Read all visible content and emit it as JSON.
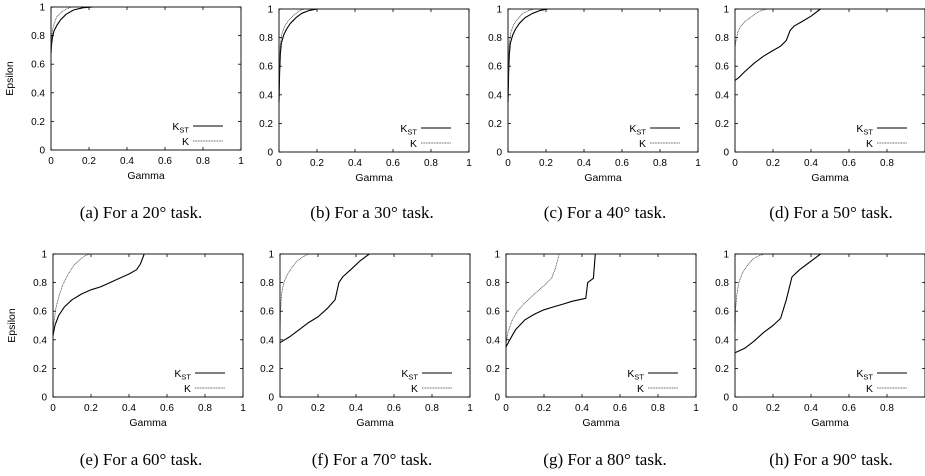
{
  "chart_data": [
    {
      "type": "line",
      "caption": "(a)  For a 20° task.",
      "xlabel": "Gamma",
      "ylabel": "Epsilon",
      "xlim": [
        0,
        1
      ],
      "ylim": [
        0,
        1
      ],
      "xticks": [
        "0",
        "0.2",
        "0.4",
        "0.6",
        "0.8",
        "1"
      ],
      "yticks": [
        "0",
        "0.2",
        "0.4",
        "0.6",
        "0.8",
        "1"
      ],
      "legend": "bottom-right",
      "grid": false,
      "series": [
        {
          "name": "K",
          "sub": "ST",
          "style": "solid",
          "points": [
            [
              0,
              0.68
            ],
            [
              0.003,
              0.74
            ],
            [
              0.008,
              0.79
            ],
            [
              0.015,
              0.83
            ],
            [
              0.03,
              0.87
            ],
            [
              0.05,
              0.91
            ],
            [
              0.08,
              0.95
            ],
            [
              0.12,
              0.98
            ],
            [
              0.17,
              0.995
            ],
            [
              0.22,
              1.0
            ]
          ]
        },
        {
          "name": "K",
          "style": "dotted",
          "points": [
            [
              0,
              0.7
            ],
            [
              0.003,
              0.78
            ],
            [
              0.008,
              0.84
            ],
            [
              0.015,
              0.88
            ],
            [
              0.03,
              0.93
            ],
            [
              0.05,
              0.96
            ],
            [
              0.08,
              0.985
            ],
            [
              0.11,
              1.0
            ]
          ]
        }
      ]
    },
    {
      "type": "line",
      "caption": "(b)  For a 30° task.",
      "xlabel": "Gamma",
      "ylabel": "",
      "xlim": [
        0,
        1
      ],
      "ylim": [
        0,
        1
      ],
      "xticks": [
        "0",
        "0.2",
        "0.4",
        "0.6",
        "0.8",
        "1"
      ],
      "yticks": [
        "0",
        "0.2",
        "0.4",
        "0.6",
        "0.8",
        "1"
      ],
      "legend": "bottom-right",
      "grid": false,
      "series": [
        {
          "name": "K",
          "sub": "ST",
          "style": "solid",
          "points": [
            [
              0,
              0.35
            ],
            [
              0.003,
              0.55
            ],
            [
              0.007,
              0.68
            ],
            [
              0.012,
              0.76
            ],
            [
              0.025,
              0.82
            ],
            [
              0.04,
              0.86
            ],
            [
              0.06,
              0.9
            ],
            [
              0.09,
              0.94
            ],
            [
              0.12,
              0.97
            ],
            [
              0.16,
              0.99
            ],
            [
              0.2,
              1.0
            ]
          ]
        },
        {
          "name": "K",
          "style": "dotted",
          "points": [
            [
              0,
              0.5
            ],
            [
              0.003,
              0.65
            ],
            [
              0.007,
              0.75
            ],
            [
              0.015,
              0.83
            ],
            [
              0.03,
              0.88
            ],
            [
              0.05,
              0.92
            ],
            [
              0.08,
              0.96
            ],
            [
              0.11,
              0.99
            ],
            [
              0.14,
              1.0
            ]
          ]
        }
      ]
    },
    {
      "type": "line",
      "caption": "(c)  For a 40° task.",
      "xlabel": "Gamma",
      "ylabel": "",
      "xlim": [
        0,
        1
      ],
      "ylim": [
        0,
        1
      ],
      "xticks": [
        "0",
        "0.2",
        "0.4",
        "0.6",
        "0.8",
        "1"
      ],
      "yticks": [
        "0",
        "0.2",
        "0.4",
        "0.6",
        "0.8",
        "1"
      ],
      "legend": "bottom-right",
      "grid": false,
      "series": [
        {
          "name": "K",
          "sub": "ST",
          "style": "solid",
          "points": [
            [
              0,
              0.35
            ],
            [
              0.003,
              0.55
            ],
            [
              0.007,
              0.68
            ],
            [
              0.012,
              0.76
            ],
            [
              0.025,
              0.82
            ],
            [
              0.04,
              0.86
            ],
            [
              0.06,
              0.9
            ],
            [
              0.09,
              0.94
            ],
            [
              0.13,
              0.97
            ],
            [
              0.17,
              0.99
            ],
            [
              0.21,
              1.0
            ]
          ]
        },
        {
          "name": "K",
          "style": "dotted",
          "points": [
            [
              0,
              0.5
            ],
            [
              0.003,
              0.65
            ],
            [
              0.007,
              0.76
            ],
            [
              0.015,
              0.84
            ],
            [
              0.03,
              0.89
            ],
            [
              0.05,
              0.93
            ],
            [
              0.08,
              0.97
            ],
            [
              0.11,
              0.99
            ],
            [
              0.14,
              1.0
            ]
          ]
        }
      ]
    },
    {
      "type": "line",
      "caption": "(d)  For a 50° task.",
      "xlabel": "Gamma",
      "ylabel": "",
      "xlim": [
        0,
        1
      ],
      "ylim": [
        0,
        1
      ],
      "xticks": [
        "0",
        "0.2",
        "0.4",
        "0.6",
        "0.8",
        ""
      ],
      "yticks": [
        "0",
        "0.2",
        "0.4",
        "0.6",
        "0.8",
        "1"
      ],
      "legend": "bottom-right",
      "grid": false,
      "series": [
        {
          "name": "K",
          "sub": "ST",
          "style": "solid",
          "points": [
            [
              0,
              0.5
            ],
            [
              0.02,
              0.52
            ],
            [
              0.05,
              0.56
            ],
            [
              0.1,
              0.62
            ],
            [
              0.15,
              0.67
            ],
            [
              0.2,
              0.71
            ],
            [
              0.24,
              0.74
            ],
            [
              0.27,
              0.78
            ],
            [
              0.29,
              0.85
            ],
            [
              0.31,
              0.88
            ],
            [
              0.35,
              0.91
            ],
            [
              0.4,
              0.95
            ],
            [
              0.45,
              1.0
            ]
          ]
        },
        {
          "name": "K",
          "style": "dotted",
          "points": [
            [
              0,
              0.72
            ],
            [
              0.005,
              0.78
            ],
            [
              0.015,
              0.84
            ],
            [
              0.03,
              0.88
            ],
            [
              0.05,
              0.91
            ],
            [
              0.08,
              0.94
            ],
            [
              0.11,
              0.97
            ],
            [
              0.14,
              0.99
            ],
            [
              0.17,
              1.0
            ]
          ]
        }
      ]
    },
    {
      "type": "line",
      "caption": "(e)  For a 60° task.",
      "xlabel": "Gamma",
      "ylabel": "Epsilon",
      "xlim": [
        0,
        1
      ],
      "ylim": [
        0,
        1
      ],
      "xticks": [
        "0",
        "0.2",
        "0.4",
        "0.6",
        "0.8",
        "1"
      ],
      "yticks": [
        "0",
        "0.2",
        "0.4",
        "0.6",
        "0.8",
        "1"
      ],
      "legend": "bottom-right",
      "grid": false,
      "series": [
        {
          "name": "K",
          "sub": "ST",
          "style": "solid",
          "points": [
            [
              0,
              0.43
            ],
            [
              0.01,
              0.5
            ],
            [
              0.03,
              0.57
            ],
            [
              0.06,
              0.63
            ],
            [
              0.1,
              0.68
            ],
            [
              0.15,
              0.72
            ],
            [
              0.2,
              0.75
            ],
            [
              0.25,
              0.77
            ],
            [
              0.3,
              0.8
            ],
            [
              0.35,
              0.83
            ],
            [
              0.4,
              0.86
            ],
            [
              0.44,
              0.89
            ],
            [
              0.46,
              0.93
            ],
            [
              0.48,
              1.0
            ]
          ]
        },
        {
          "name": "K",
          "style": "dotted",
          "points": [
            [
              0,
              0.45
            ],
            [
              0.005,
              0.53
            ],
            [
              0.015,
              0.62
            ],
            [
              0.03,
              0.7
            ],
            [
              0.05,
              0.78
            ],
            [
              0.08,
              0.86
            ],
            [
              0.11,
              0.92
            ],
            [
              0.14,
              0.96
            ],
            [
              0.17,
              0.99
            ],
            [
              0.2,
              1.0
            ]
          ]
        }
      ]
    },
    {
      "type": "line",
      "caption": "(f)  For a 70° task.",
      "xlabel": "Gamma",
      "ylabel": "",
      "xlim": [
        0,
        1
      ],
      "ylim": [
        0,
        1
      ],
      "xticks": [
        "0",
        "0.2",
        "0.4",
        "0.6",
        "0.8",
        "1"
      ],
      "yticks": [
        "0",
        "0.2",
        "0.4",
        "0.6",
        "0.8",
        "1"
      ],
      "legend": "bottom-right",
      "grid": false,
      "series": [
        {
          "name": "K",
          "sub": "ST",
          "style": "solid",
          "points": [
            [
              0,
              0.38
            ],
            [
              0.05,
              0.42
            ],
            [
              0.1,
              0.47
            ],
            [
              0.15,
              0.52
            ],
            [
              0.2,
              0.56
            ],
            [
              0.25,
              0.62
            ],
            [
              0.29,
              0.68
            ],
            [
              0.31,
              0.8
            ],
            [
              0.33,
              0.84
            ],
            [
              0.38,
              0.9
            ],
            [
              0.42,
              0.95
            ],
            [
              0.47,
              1.0
            ]
          ]
        },
        {
          "name": "K",
          "style": "dotted",
          "points": [
            [
              0,
              0.38
            ],
            [
              0.003,
              0.6
            ],
            [
              0.008,
              0.72
            ],
            [
              0.02,
              0.8
            ],
            [
              0.04,
              0.86
            ],
            [
              0.06,
              0.9
            ],
            [
              0.09,
              0.95
            ],
            [
              0.12,
              0.98
            ],
            [
              0.15,
              1.0
            ]
          ]
        }
      ]
    },
    {
      "type": "line",
      "caption": "(g)  For a 80° task.",
      "xlabel": "Gamma",
      "ylabel": "",
      "xlim": [
        0,
        1
      ],
      "ylim": [
        0,
        1
      ],
      "xticks": [
        "0",
        "0.2",
        "0.4",
        "0.6",
        "0.8",
        "1"
      ],
      "yticks": [
        "0",
        "0.2",
        "0.4",
        "0.6",
        "0.8",
        "1"
      ],
      "legend": "bottom-right",
      "grid": false,
      "series": [
        {
          "name": "K",
          "sub": "ST",
          "style": "solid",
          "points": [
            [
              0,
              0.35
            ],
            [
              0.02,
              0.4
            ],
            [
              0.05,
              0.47
            ],
            [
              0.1,
              0.54
            ],
            [
              0.15,
              0.58
            ],
            [
              0.2,
              0.61
            ],
            [
              0.25,
              0.63
            ],
            [
              0.3,
              0.65
            ],
            [
              0.35,
              0.67
            ],
            [
              0.42,
              0.69
            ],
            [
              0.43,
              0.8
            ],
            [
              0.46,
              0.83
            ],
            [
              0.47,
              1.0
            ]
          ]
        },
        {
          "name": "K",
          "style": "dotted",
          "points": [
            [
              0,
              0.37
            ],
            [
              0.01,
              0.45
            ],
            [
              0.03,
              0.53
            ],
            [
              0.06,
              0.6
            ],
            [
              0.1,
              0.66
            ],
            [
              0.15,
              0.72
            ],
            [
              0.2,
              0.78
            ],
            [
              0.24,
              0.83
            ],
            [
              0.26,
              0.9
            ],
            [
              0.28,
              1.0
            ]
          ]
        }
      ]
    },
    {
      "type": "line",
      "caption": "(h)  For a 90° task.",
      "xlabel": "Gamma",
      "ylabel": "",
      "xlim": [
        0,
        1
      ],
      "ylim": [
        0,
        1
      ],
      "xticks": [
        "0",
        "0.2",
        "0.4",
        "0.6",
        "0.8",
        ""
      ],
      "yticks": [
        "0",
        "0.2",
        "0.4",
        "0.6",
        "0.8",
        "1"
      ],
      "legend": "bottom-right",
      "grid": false,
      "series": [
        {
          "name": "K",
          "sub": "ST",
          "style": "solid",
          "points": [
            [
              0,
              0.31
            ],
            [
              0.05,
              0.34
            ],
            [
              0.1,
              0.39
            ],
            [
              0.15,
              0.45
            ],
            [
              0.2,
              0.5
            ],
            [
              0.24,
              0.55
            ],
            [
              0.27,
              0.68
            ],
            [
              0.3,
              0.84
            ],
            [
              0.34,
              0.89
            ],
            [
              0.38,
              0.93
            ],
            [
              0.42,
              0.97
            ],
            [
              0.45,
              1.0
            ]
          ]
        },
        {
          "name": "K",
          "style": "dotted",
          "points": [
            [
              0,
              0.35
            ],
            [
              0.003,
              0.62
            ],
            [
              0.01,
              0.72
            ],
            [
              0.02,
              0.8
            ],
            [
              0.04,
              0.87
            ],
            [
              0.07,
              0.93
            ],
            [
              0.1,
              0.97
            ],
            [
              0.13,
              0.99
            ],
            [
              0.16,
              1.0
            ]
          ]
        }
      ]
    }
  ]
}
